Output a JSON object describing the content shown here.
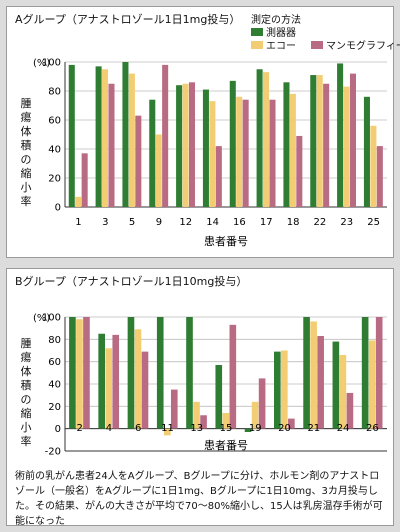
{
  "colors": {
    "measuring_device": "#2f7d32",
    "echo": "#f2cd73",
    "mammography": "#b86b83"
  },
  "legend": {
    "title": "測定の方法",
    "items": [
      "測器器",
      "エコー",
      "マンモグラフィー"
    ]
  },
  "panel_a": {
    "title": "Aグループ（アナストロゾール1日1mg投与）",
    "ylabel": "腫瘍体積の縮小率",
    "xlabel": "患者番号"
  },
  "panel_b": {
    "title": "Bグループ（アナストロゾール1日10mg投与）",
    "ylabel": "腫瘍体積の縮小率",
    "xlabel": "患者番号",
    "caption": "術前の乳がん患者24人をAグループ、Bグループに分け、ホルモン剤のアナストロゾール（一般名）をAグループに1日1mg、Bグループに1日10mg、3カ月投与した。その結果、がんの大きさが平均で70〜80%縮小し、15人は乳房温存手術が可能になった"
  },
  "chart_data": [
    {
      "type": "bar",
      "title": "Aグループ（アナストロゾール1日1mg投与）",
      "xlabel": "患者番号",
      "ylabel": "腫瘍体積の縮小率",
      "unit": "(%)",
      "ylim": [
        0,
        100
      ],
      "yticks": [
        0,
        20,
        40,
        60,
        80,
        100
      ],
      "categories": [
        "1",
        "3",
        "5",
        "9",
        "12",
        "14",
        "16",
        "17",
        "18",
        "22",
        "23",
        "25"
      ],
      "series": [
        {
          "name": "測器器",
          "values": [
            98,
            97,
            100,
            74,
            84,
            81,
            87,
            95,
            86,
            91,
            99,
            76
          ]
        },
        {
          "name": "エコー",
          "values": [
            7,
            95,
            92,
            50,
            85,
            73,
            76,
            93,
            78,
            91,
            83,
            56
          ]
        },
        {
          "name": "マンモグラフィー",
          "values": [
            37,
            85,
            63,
            98,
            86,
            42,
            74,
            74,
            49,
            85,
            92,
            42
          ]
        }
      ]
    },
    {
      "type": "bar",
      "title": "Bグループ（アナストロゾール1日10mg投与）",
      "xlabel": "患者番号",
      "ylabel": "腫瘍体積の縮小率",
      "unit": "(%)",
      "ylim": [
        -20,
        100
      ],
      "yticks": [
        -20,
        0,
        20,
        40,
        60,
        80,
        100
      ],
      "categories": [
        "2",
        "4",
        "6",
        "11",
        "13",
        "15",
        "19",
        "20",
        "21",
        "24",
        "26"
      ],
      "series": [
        {
          "name": "測器器",
          "values": [
            100,
            85,
            100,
            100,
            100,
            57,
            -3,
            69,
            100,
            78,
            100
          ]
        },
        {
          "name": "エコー",
          "values": [
            98,
            72,
            89,
            -6,
            24,
            14,
            24,
            70,
            96,
            66,
            79
          ]
        },
        {
          "name": "マンモグラフィー",
          "values": [
            100,
            84,
            69,
            35,
            12,
            93,
            45,
            9,
            83,
            32,
            100
          ]
        }
      ]
    }
  ]
}
